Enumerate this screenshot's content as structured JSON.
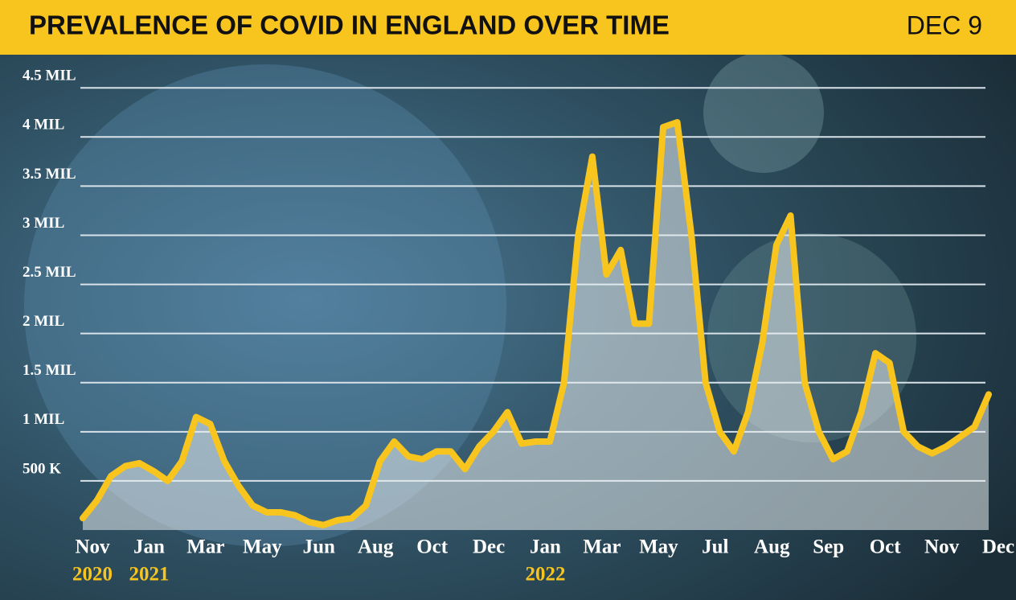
{
  "chart_data": {
    "type": "line",
    "title": "PREVALENCE OF COVID IN ENGLAND OVER TIME",
    "subtitle": "DEC 9",
    "categories": [
      "Nov",
      null,
      null,
      null,
      "Jan",
      null,
      null,
      null,
      "Mar",
      null,
      null,
      null,
      "May",
      null,
      null,
      null,
      "Jun",
      null,
      null,
      null,
      "Aug",
      null,
      null,
      null,
      "Oct",
      null,
      null,
      null,
      "Dec",
      null,
      null,
      null,
      "Jan",
      null,
      null,
      null,
      "Mar",
      null,
      null,
      null,
      "May",
      null,
      null,
      null,
      "Jul",
      null,
      null,
      null,
      "Aug",
      null,
      null,
      null,
      "Sep",
      null,
      null,
      null,
      "Oct",
      null,
      null,
      null,
      "Nov",
      null,
      null,
      null,
      "Dec"
    ],
    "year_labels": [
      "2020",
      null,
      null,
      null,
      "2021",
      null,
      null,
      null,
      null,
      null,
      null,
      null,
      null,
      null,
      null,
      null,
      null,
      null,
      null,
      null,
      null,
      null,
      null,
      null,
      null,
      null,
      null,
      null,
      null,
      null,
      null,
      null,
      "2022",
      null,
      null,
      null,
      null,
      null,
      null,
      null,
      null,
      null,
      null,
      null,
      null,
      null,
      null,
      null,
      null,
      null,
      null,
      null,
      null,
      null,
      null,
      null,
      null,
      null,
      null,
      null,
      null,
      null,
      null,
      null,
      null
    ],
    "series": [
      {
        "color": "#f7c51e",
        "values": [
          0.12,
          0.3,
          0.55,
          0.65,
          0.68,
          0.6,
          0.5,
          0.7,
          1.15,
          1.08,
          0.7,
          0.45,
          0.25,
          0.18,
          0.18,
          0.15,
          0.08,
          0.05,
          0.1,
          0.12,
          0.25,
          0.7,
          0.9,
          0.75,
          0.72,
          0.8,
          0.8,
          0.62,
          0.85,
          1.0,
          1.2,
          0.88,
          0.9,
          0.9,
          1.5,
          3.0,
          3.8,
          2.6,
          2.85,
          2.1,
          2.1,
          4.1,
          4.15,
          3.0,
          1.5,
          1.0,
          0.8,
          1.2,
          1.9,
          2.9,
          3.2,
          1.5,
          1.0,
          0.72,
          0.8,
          1.2,
          1.8,
          1.7,
          1.0,
          0.85,
          0.78,
          0.85,
          0.95,
          1.05,
          1.38
        ]
      }
    ],
    "ylim": [
      0,
      4.6
    ],
    "yticks": [
      {
        "value": 0.5,
        "label": "500 K"
      },
      {
        "value": 1,
        "label": "1 MIL"
      },
      {
        "value": 1.5,
        "label": "1.5 MIL"
      },
      {
        "value": 2,
        "label": "2 MIL"
      },
      {
        "value": 2.5,
        "label": "2.5 MIL"
      },
      {
        "value": 3,
        "label": "3 MIL"
      },
      {
        "value": 3.5,
        "label": "3.5 MIL"
      },
      {
        "value": 4,
        "label": "4 MIL"
      },
      {
        "value": 4.5,
        "label": "4.5 MIL"
      }
    ],
    "grid": true
  }
}
